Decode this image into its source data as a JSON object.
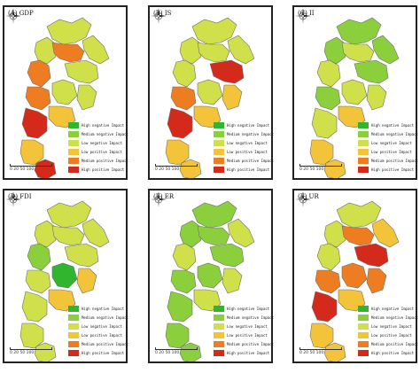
{
  "colors": {
    "high_negative": "#2fb52e",
    "medium_negative": "#8ccf3c",
    "low_negative": "#cfe04a",
    "low_positive": "#f3c43a",
    "medium_positive": "#ee7d22",
    "high_positive": "#d42a1c"
  },
  "legend": [
    {
      "label": "High negative Impact",
      "color": "#2fb52e"
    },
    {
      "label": "Medium negative Impact",
      "color": "#8ccf3c"
    },
    {
      "label": "Low negative Impact",
      "color": "#cfe04a"
    },
    {
      "label": "Low positive Impact",
      "color": "#f3c43a"
    },
    {
      "label": "Medium positive Impact",
      "color": "#ee7d22"
    },
    {
      "label": "High positive Impact",
      "color": "#d42a1c"
    }
  ],
  "scale_text": "0  20  50    100",
  "compass_icon": "north-arrow-compass-icon",
  "panels": [
    {
      "title": "(A) GDP",
      "region_levels": [
        3,
        3,
        3,
        5,
        5,
        3,
        5,
        3,
        6,
        3,
        4,
        4,
        6
      ]
    },
    {
      "title": "(B) IS",
      "region_levels": [
        3,
        3,
        3,
        3,
        3,
        6,
        5,
        3,
        6,
        4,
        4,
        4,
        4
      ]
    },
    {
      "title": "(C) II",
      "region_levels": [
        2,
        2,
        2,
        3,
        3,
        2,
        2,
        3,
        3,
        3,
        4,
        4,
        4
      ]
    },
    {
      "title": "(D) FDI",
      "region_levels": [
        3,
        3,
        3,
        2,
        3,
        3,
        3,
        1,
        3,
        4,
        4,
        3,
        3
      ]
    },
    {
      "title": "(E) ER",
      "region_levels": [
        2,
        2,
        3,
        3,
        2,
        2,
        2,
        2,
        2,
        3,
        3,
        2,
        2
      ]
    },
    {
      "title": "(F) UR",
      "region_levels": [
        3,
        3,
        4,
        3,
        5,
        6,
        5,
        5,
        6,
        5,
        4,
        4,
        4
      ]
    }
  ]
}
